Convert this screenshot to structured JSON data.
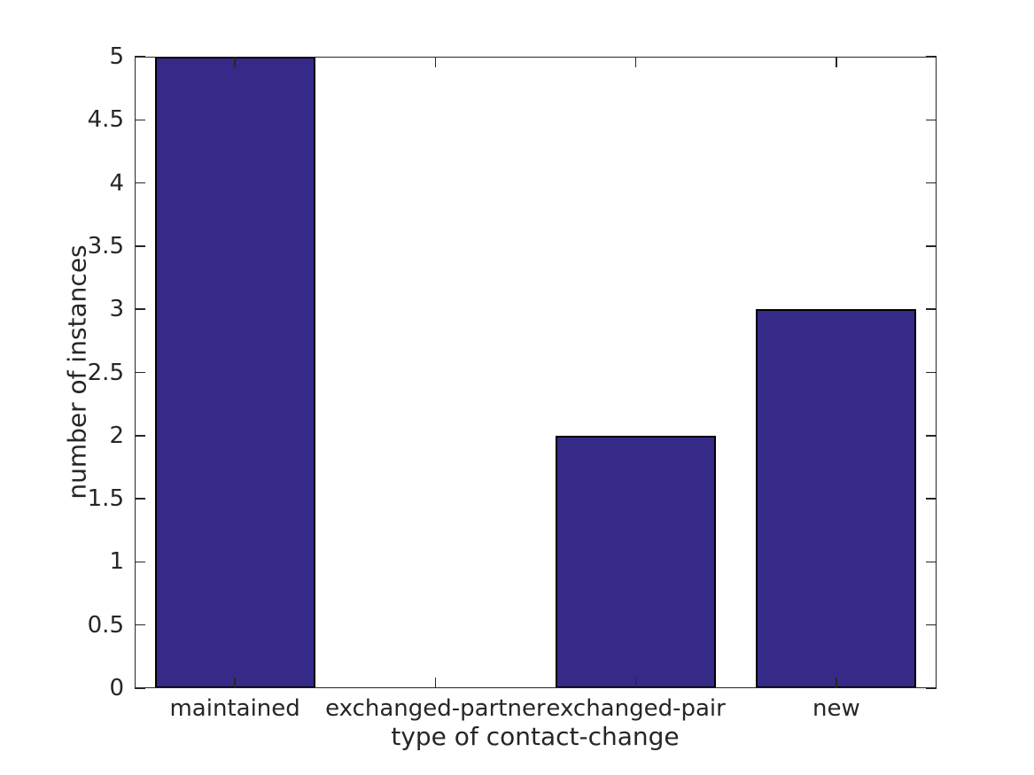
{
  "chart_data": {
    "type": "bar",
    "title": "",
    "categories": [
      "maintained",
      "exchanged-partner",
      "exchanged-pair",
      "new"
    ],
    "values": [
      5,
      0,
      2,
      3
    ],
    "xlabel": "type of contact-change",
    "ylabel": "number of instances",
    "ylim": [
      0,
      5
    ],
    "ytick_step": 0.5,
    "ytick_labels": [
      "0",
      "0.5",
      "1",
      "1.5",
      "2",
      "2.5",
      "3",
      "3.5",
      "4",
      "4.5",
      "5"
    ],
    "grid": false,
    "legend": "none",
    "box": "on",
    "tick_direction": "in",
    "bar_width_fraction": 0.8,
    "bar_color": "#352a87",
    "bar_edge_color": "#000000",
    "axis_color": "#262626",
    "text_color": "#262626",
    "background_color": "#ffffff"
  }
}
